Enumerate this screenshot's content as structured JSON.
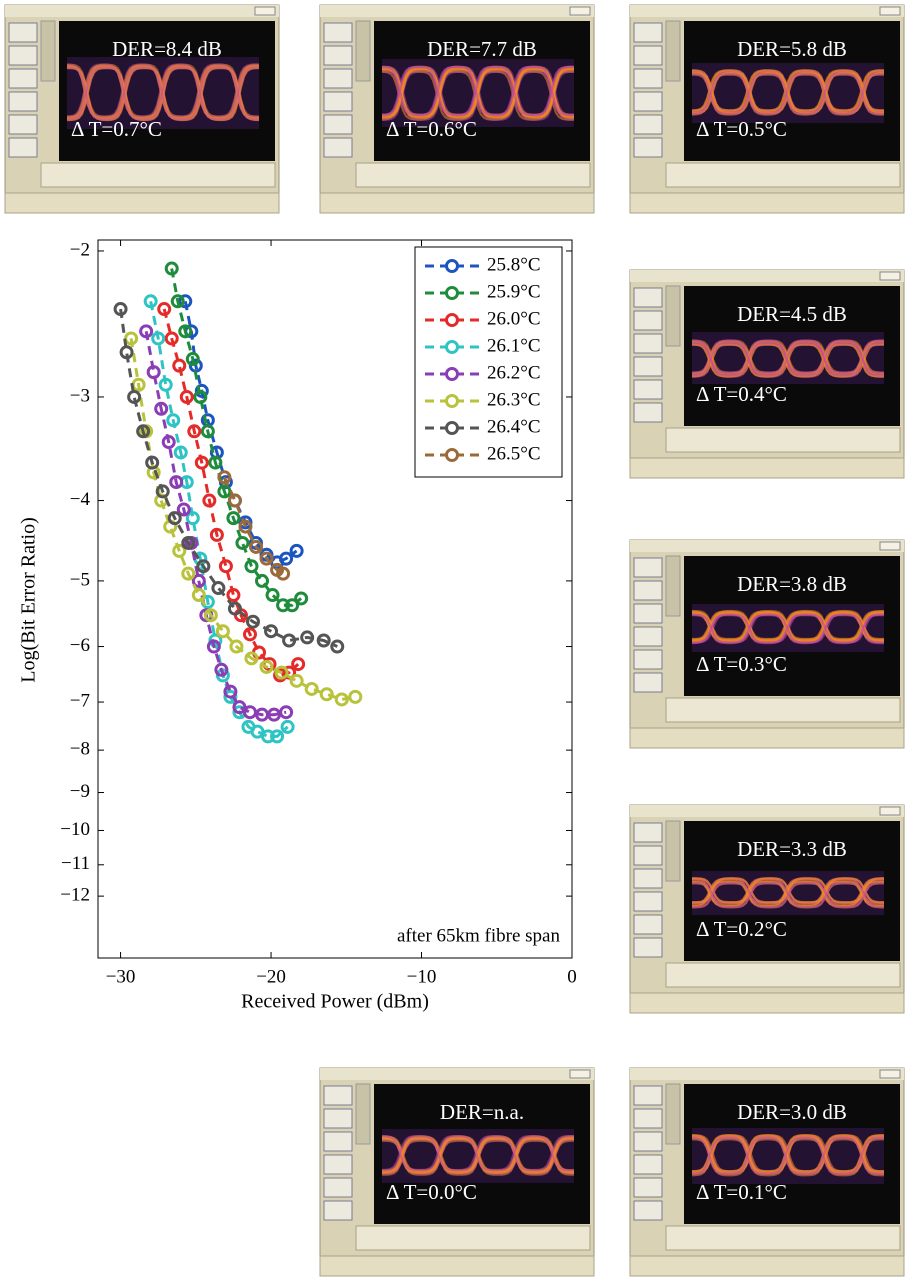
{
  "chart_data": {
    "type": "line",
    "xlabel": "Received Power (dBm)",
    "ylabel": "Log(Bit Error Ratio)",
    "annotation": "after 65km fibre span",
    "xlim": [
      -31.5,
      0
    ],
    "ylim": [
      -14.25,
      -1.94
    ],
    "yscale": "log-negative",
    "xticks": [
      {
        "value": -30,
        "label": "−30"
      },
      {
        "value": -20,
        "label": "−20"
      },
      {
        "value": -10,
        "label": "−10"
      },
      0
    ],
    "yticks": [
      {
        "value": -2,
        "label": "−2"
      },
      {
        "value": -3,
        "label": "−3"
      },
      {
        "value": -4,
        "label": "−4"
      },
      {
        "value": -5,
        "label": "−5"
      },
      {
        "value": -6,
        "label": "−6"
      },
      {
        "value": -7,
        "label": "−7"
      },
      {
        "value": -8,
        "label": "−8"
      },
      {
        "value": -9,
        "label": "−9"
      },
      {
        "value": -10,
        "label": "−10"
      },
      {
        "value": -11,
        "label": "−11"
      },
      {
        "value": -12,
        "label": "−12"
      }
    ],
    "legend": "upper right",
    "series": [
      {
        "name": "25.8°C",
        "color": "#1c55c0",
        "x": [
          -25.7,
          -25.3,
          -25.0,
          -24.6,
          -24.2,
          -23.6,
          -23.0,
          -22.4,
          -21.7,
          -21.0,
          -20.3,
          -19.6,
          -19.0,
          -18.3
        ],
        "values": [
          -2.3,
          -2.5,
          -2.75,
          -2.95,
          -3.2,
          -3.5,
          -3.8,
          -4.0,
          -4.25,
          -4.5,
          -4.65,
          -4.75,
          -4.7,
          -4.6
        ]
      },
      {
        "name": "25.9°C",
        "color": "#1e8c3a",
        "x": [
          -26.6,
          -26.2,
          -25.7,
          -25.2,
          -24.7,
          -24.2,
          -23.7,
          -23.1,
          -22.5,
          -21.9,
          -21.3,
          -20.6,
          -19.9,
          -19.2,
          -18.6,
          -18.0
        ],
        "values": [
          -2.1,
          -2.3,
          -2.5,
          -2.7,
          -3.0,
          -3.3,
          -3.6,
          -3.9,
          -4.2,
          -4.5,
          -4.8,
          -5.0,
          -5.2,
          -5.35,
          -5.35,
          -5.25
        ]
      },
      {
        "name": "26.0°C",
        "color": "#e52a2a",
        "x": [
          -27.1,
          -26.6,
          -26.1,
          -25.6,
          -25.1,
          -24.6,
          -24.1,
          -23.6,
          -23.0,
          -22.5,
          -22.0,
          -21.4,
          -20.8,
          -20.1,
          -19.4,
          -18.8,
          -18.2
        ],
        "values": [
          -2.35,
          -2.55,
          -2.75,
          -3.0,
          -3.3,
          -3.6,
          -4.0,
          -4.4,
          -4.8,
          -5.2,
          -5.5,
          -5.8,
          -6.1,
          -6.3,
          -6.5,
          -6.45,
          -6.3
        ]
      },
      {
        "name": "26.1°C",
        "color": "#2ec4c4",
        "x": [
          -28.0,
          -27.5,
          -27.0,
          -26.5,
          -26.0,
          -25.6,
          -25.2,
          -24.7,
          -24.2,
          -23.7,
          -23.2,
          -22.7,
          -22.1,
          -21.5,
          -20.9,
          -20.2,
          -19.6,
          -18.9
        ],
        "values": [
          -2.3,
          -2.55,
          -2.9,
          -3.2,
          -3.5,
          -3.8,
          -4.2,
          -4.7,
          -5.3,
          -5.9,
          -6.5,
          -6.9,
          -7.2,
          -7.5,
          -7.6,
          -7.7,
          -7.7,
          -7.5
        ]
      },
      {
        "name": "26.2°C",
        "color": "#8a3db4",
        "x": [
          -28.3,
          -27.8,
          -27.3,
          -26.8,
          -26.3,
          -25.8,
          -25.3,
          -24.8,
          -24.3,
          -23.8,
          -23.3,
          -22.7,
          -22.1,
          -21.4,
          -20.6,
          -19.8,
          -19.0
        ],
        "values": [
          -2.5,
          -2.8,
          -3.1,
          -3.4,
          -3.8,
          -4.1,
          -4.5,
          -5.0,
          -5.5,
          -6.0,
          -6.4,
          -6.8,
          -7.1,
          -7.2,
          -7.25,
          -7.25,
          -7.2
        ]
      },
      {
        "name": "26.3°C",
        "color": "#b8c23a",
        "x": [
          -29.3,
          -28.8,
          -28.3,
          -27.8,
          -27.3,
          -26.7,
          -26.1,
          -25.5,
          -24.8,
          -24.0,
          -23.2,
          -22.3,
          -21.3,
          -20.3,
          -19.3,
          -18.3,
          -17.3,
          -16.3,
          -15.3,
          -14.4
        ],
        "values": [
          -2.55,
          -2.9,
          -3.3,
          -3.7,
          -4.0,
          -4.3,
          -4.6,
          -4.9,
          -5.2,
          -5.5,
          -5.75,
          -6.0,
          -6.2,
          -6.35,
          -6.45,
          -6.6,
          -6.75,
          -6.85,
          -6.95,
          -6.9
        ]
      },
      {
        "name": "26.4°C",
        "color": "#555555",
        "x": [
          -30.0,
          -29.6,
          -29.1,
          -28.5,
          -27.9,
          -27.2,
          -26.4,
          -25.5,
          -24.5,
          -23.5,
          -22.4,
          -21.2,
          -20.0,
          -18.8,
          -17.6,
          -16.5,
          -15.6
        ],
        "values": [
          -2.35,
          -2.65,
          -3.0,
          -3.3,
          -3.6,
          -3.9,
          -4.2,
          -4.5,
          -4.8,
          -5.1,
          -5.4,
          -5.6,
          -5.75,
          -5.9,
          -5.85,
          -5.9,
          -6.0
        ]
      },
      {
        "name": "26.5°C",
        "color": "#9a6a3a",
        "x": [
          -23.1,
          -22.4,
          -21.7,
          -21.0,
          -20.3,
          -19.6,
          -19.2
        ],
        "values": [
          -3.75,
          -4.0,
          -4.3,
          -4.55,
          -4.7,
          -4.85,
          -4.9
        ]
      }
    ]
  },
  "panels": [
    {
      "der": "DER=8.4 dB",
      "dt": "Δ T=0.7°C"
    },
    {
      "der": "DER=7.7 dB",
      "dt": "Δ T=0.6°C"
    },
    {
      "der": "DER=5.8 dB",
      "dt": "Δ T=0.5°C"
    },
    {
      "der": "DER=4.5 dB",
      "dt": "Δ T=0.4°C"
    },
    {
      "der": "DER=3.8 dB",
      "dt": "Δ T=0.3°C"
    },
    {
      "der": "DER=3.3 dB",
      "dt": "Δ T=0.2°C"
    },
    {
      "der": "DER=n.a.",
      "dt": "Δ T=0.0°C"
    },
    {
      "der": "DER=3.0 dB",
      "dt": "Δ T=0.1°C"
    }
  ]
}
